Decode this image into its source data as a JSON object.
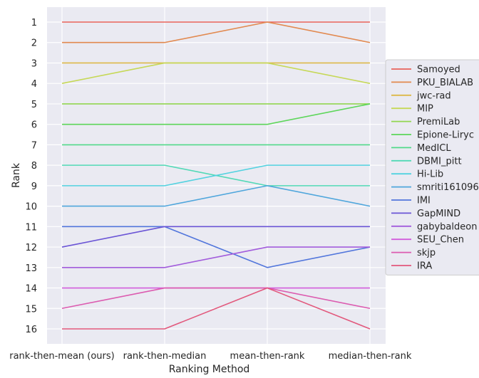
{
  "chart_data": {
    "type": "line",
    "title": "",
    "xlabel": "Ranking Method",
    "ylabel": "Rank",
    "categories": [
      "rank-then-mean (ours)",
      "rank-then-median",
      "mean-then-rank",
      "median-then-rank"
    ],
    "ylim": [
      16,
      1
    ],
    "y_inverted": true,
    "yticks": [
      1,
      2,
      3,
      4,
      5,
      6,
      7,
      8,
      9,
      10,
      11,
      12,
      13,
      14,
      15,
      16
    ],
    "grid": true,
    "legend_position": "right",
    "background": "#eaeaf2",
    "series": [
      {
        "name": "Samoyed",
        "color": "#e8625a",
        "values": [
          1,
          1,
          1,
          1
        ]
      },
      {
        "name": "PKU_BIALAB",
        "color": "#e2894f",
        "values": [
          2,
          2,
          1,
          2
        ]
      },
      {
        "name": "jwc-rad",
        "color": "#dcb848",
        "values": [
          3,
          3,
          3,
          3
        ]
      },
      {
        "name": "MIP",
        "color": "#c6d857",
        "values": [
          4,
          3,
          3,
          4
        ]
      },
      {
        "name": "PremiLab",
        "color": "#92d650",
        "values": [
          5,
          5,
          5,
          5
        ]
      },
      {
        "name": "Epione-Liryc",
        "color": "#5dd65a",
        "values": [
          6,
          6,
          6,
          5
        ]
      },
      {
        "name": "MedICL",
        "color": "#52d98a",
        "values": [
          7,
          7,
          7,
          7
        ]
      },
      {
        "name": "DBMI_pitt",
        "color": "#52d9b6",
        "values": [
          8,
          8,
          9,
          9
        ]
      },
      {
        "name": "Hi-Lib",
        "color": "#52d2e0",
        "values": [
          9,
          9,
          8,
          8
        ]
      },
      {
        "name": "smriti161096",
        "color": "#4fa6dc",
        "values": [
          10,
          10,
          9,
          10
        ]
      },
      {
        "name": "IMI",
        "color": "#5276dc",
        "values": [
          11,
          11,
          13,
          12
        ]
      },
      {
        "name": "GapMIND",
        "color": "#6b55d6",
        "values": [
          12,
          11,
          11,
          11
        ]
      },
      {
        "name": "gabybaldeon",
        "color": "#a25cdc",
        "values": [
          13,
          13,
          12,
          12
        ]
      },
      {
        "name": "SEU_Chen",
        "color": "#d25cdc",
        "values": [
          14,
          14,
          14,
          14
        ]
      },
      {
        "name": "skjp",
        "color": "#dc5cb0",
        "values": [
          15,
          14,
          14,
          15
        ]
      },
      {
        "name": "IRA",
        "color": "#e2587c",
        "values": [
          16,
          16,
          14,
          16
        ]
      }
    ]
  }
}
